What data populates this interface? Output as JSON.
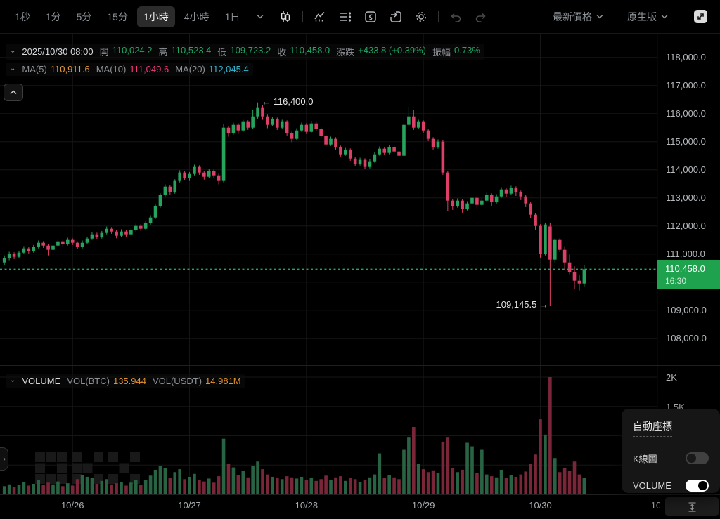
{
  "toolbar": {
    "timeframes": [
      "1秒",
      "1分",
      "5分",
      "15分",
      "1小時",
      "4小時",
      "1日"
    ],
    "selected_timeframe": "1小時",
    "price_mode_label": "最新價格",
    "version_label": "原生版"
  },
  "info_bar": {
    "datetime": "2025/10/30 08:00",
    "open_label": "開",
    "open": "110,024.2",
    "high_label": "高",
    "high": "110,523.4",
    "low_label": "低",
    "low": "109,723.2",
    "close_label": "收",
    "close": "110,458.0",
    "change_label": "漲跌",
    "change": "+433.8 (+0.39%)",
    "amplitude_label": "振幅",
    "amplitude": "0.73%"
  },
  "ma_bar": {
    "ma5_label": "MA(5)",
    "ma5": "110,911.6",
    "ma10_label": "MA(10)",
    "ma10": "111,049.6",
    "ma20_label": "MA(20)",
    "ma20": "112,045.4"
  },
  "annotations": {
    "high": "← 116,400.0",
    "low": "109,145.5 →"
  },
  "price_badge": {
    "price": "110,458.0",
    "time": "16:30"
  },
  "price_axis": {
    "labels": [
      {
        "text": "118,000.0",
        "price": 118000
      },
      {
        "text": "117,000.0",
        "price": 117000
      },
      {
        "text": "116,000.0",
        "price": 116000
      },
      {
        "text": "115,000.0",
        "price": 115000
      },
      {
        "text": "114,000.0",
        "price": 114000
      },
      {
        "text": "113,000.0",
        "price": 113000
      },
      {
        "text": "112,000.0",
        "price": 112000
      },
      {
        "text": "111,000.0",
        "price": 111000
      },
      {
        "text": "109,000.0",
        "price": 109000
      },
      {
        "text": "108,000.0",
        "price": 108000
      }
    ]
  },
  "volume_axis": [
    {
      "text": "2K",
      "value": 2000
    },
    {
      "text": "1.5K",
      "value": 1500
    }
  ],
  "volume_bar": {
    "title": "VOLUME",
    "btc_label": "VOL(BTC)",
    "btc": "135.944",
    "usdt_label": "VOL(USDT)",
    "usdt": "14.981M"
  },
  "settings_popup": {
    "title": "自動座標",
    "items": [
      {
        "label": "K線圖",
        "enabled": false
      },
      {
        "label": "VOLUME",
        "enabled": true
      }
    ]
  },
  "colors": {
    "up": "#27a35e",
    "down": "#dc4067",
    "vol_up": "#286443",
    "vol_down": "#7a2639",
    "badge_green": "#1ea24e",
    "dotted_line": "#23a85c",
    "ma5": "#e89c3b",
    "ma10": "#f23a7c",
    "ma20": "#33b6d0",
    "value_orange": "#df9030",
    "grid": "#161616",
    "separator": "#1f1f1f"
  },
  "chart_data": {
    "type": "candlestick+volume",
    "timeframe": "1小時",
    "columns": [
      "open",
      "high",
      "low",
      "close",
      "volume"
    ],
    "price_axis_range": [
      108000,
      118500
    ],
    "volume_axis_ticks": [
      2000,
      1500
    ],
    "current_price": 110458.0,
    "current_time": "16:30",
    "high_annotation": {
      "value": 116400.0,
      "candle_index": 52
    },
    "low_annotation": {
      "value": 109145.5,
      "candle_index": 112
    },
    "day_ticks": [
      {
        "index": 14,
        "label": "10/26"
      },
      {
        "index": 38,
        "label": "10/27"
      },
      {
        "index": 62,
        "label": "10/28"
      },
      {
        "index": 86,
        "label": "10/29"
      },
      {
        "index": 110,
        "label": "10/30"
      },
      {
        "index": 134,
        "label": "10/"
      }
    ],
    "candles": [
      [
        110700,
        110950,
        110600,
        110850,
        140
      ],
      [
        110850,
        111080,
        110780,
        111000,
        170
      ],
      [
        111000,
        111060,
        110820,
        110900,
        120
      ],
      [
        110900,
        111120,
        110850,
        111050,
        160
      ],
      [
        111050,
        111280,
        111000,
        111200,
        210
      ],
      [
        111200,
        111260,
        111000,
        111100,
        150
      ],
      [
        111100,
        111320,
        111050,
        111250,
        180
      ],
      [
        111250,
        111480,
        111200,
        111400,
        240
      ],
      [
        111400,
        111460,
        111220,
        111300,
        160
      ],
      [
        111300,
        111360,
        110950,
        111150,
        200
      ],
      [
        111150,
        111380,
        111100,
        111300,
        170
      ],
      [
        111300,
        111520,
        111250,
        111450,
        220
      ],
      [
        111450,
        111500,
        111280,
        111350,
        140
      ],
      [
        111350,
        111580,
        111300,
        111500,
        190
      ],
      [
        111500,
        111560,
        111320,
        111400,
        150
      ],
      [
        111400,
        111450,
        111180,
        111250,
        260
      ],
      [
        111250,
        111480,
        111200,
        111400,
        330
      ],
      [
        111400,
        111620,
        111350,
        111550,
        300
      ],
      [
        111550,
        111780,
        111500,
        111700,
        280
      ],
      [
        111700,
        111760,
        111520,
        111600,
        180
      ],
      [
        111600,
        111820,
        111550,
        111750,
        230
      ],
      [
        111750,
        111980,
        111700,
        111900,
        260
      ],
      [
        111900,
        111960,
        111720,
        111800,
        170
      ],
      [
        111800,
        111860,
        111560,
        111650,
        190
      ],
      [
        111650,
        111880,
        111600,
        111800,
        210
      ],
      [
        111800,
        111860,
        111620,
        111700,
        150
      ],
      [
        111700,
        111920,
        111650,
        111850,
        200
      ],
      [
        111850,
        112080,
        111800,
        112000,
        250
      ],
      [
        112000,
        112060,
        111820,
        111900,
        160
      ],
      [
        111900,
        112160,
        111850,
        112100,
        240
      ],
      [
        112100,
        112380,
        112050,
        112300,
        320
      ],
      [
        112300,
        112760,
        112250,
        112700,
        420
      ],
      [
        112700,
        113160,
        112650,
        113100,
        480
      ],
      [
        113100,
        113480,
        113050,
        113400,
        450
      ],
      [
        113400,
        113460,
        113120,
        113200,
        280
      ],
      [
        113200,
        113660,
        113150,
        113600,
        380
      ],
      [
        113600,
        113980,
        113550,
        113900,
        430
      ],
      [
        113900,
        113960,
        113620,
        113700,
        260
      ],
      [
        113700,
        113920,
        113600,
        113850,
        300
      ],
      [
        113850,
        114180,
        113800,
        114100,
        350
      ],
      [
        114100,
        114160,
        113820,
        113900,
        240
      ],
      [
        113900,
        113960,
        113650,
        113750,
        220
      ],
      [
        113750,
        114020,
        113700,
        113950,
        270
      ],
      [
        113950,
        114010,
        113700,
        113800,
        200
      ],
      [
        113800,
        113860,
        113480,
        113600,
        310
      ],
      [
        113600,
        115640,
        113550,
        115500,
        950
      ],
      [
        115500,
        115560,
        115180,
        115300,
        520
      ],
      [
        115300,
        115680,
        115250,
        115600,
        460
      ],
      [
        115600,
        115660,
        115280,
        115400,
        330
      ],
      [
        115400,
        115780,
        115350,
        115700,
        400
      ],
      [
        115700,
        115760,
        115420,
        115500,
        290
      ],
      [
        115500,
        116120,
        115450,
        115900,
        480
      ],
      [
        115900,
        116400,
        115820,
        116200,
        560
      ],
      [
        116200,
        116300,
        115780,
        115900,
        430
      ],
      [
        115900,
        115960,
        115480,
        115600,
        340
      ],
      [
        115600,
        115880,
        115550,
        115800,
        300
      ],
      [
        115800,
        115860,
        115420,
        115500,
        280
      ],
      [
        115500,
        115780,
        115450,
        115700,
        260
      ],
      [
        115700,
        115760,
        115220,
        115300,
        310
      ],
      [
        115300,
        115360,
        114980,
        115100,
        290
      ],
      [
        115100,
        115480,
        115050,
        115400,
        270
      ],
      [
        115400,
        115680,
        115350,
        115600,
        300
      ],
      [
        115600,
        115660,
        115270,
        115350,
        250
      ],
      [
        115350,
        115720,
        115300,
        115650,
        280
      ],
      [
        115650,
        115710,
        115370,
        115450,
        230
      ],
      [
        115450,
        115510,
        115120,
        115200,
        260
      ],
      [
        115200,
        115260,
        114820,
        114900,
        320
      ],
      [
        114900,
        115180,
        114850,
        115100,
        240
      ],
      [
        115100,
        115160,
        114720,
        114800,
        290
      ],
      [
        114800,
        114860,
        114470,
        114550,
        310
      ],
      [
        114550,
        114780,
        114500,
        114700,
        230
      ],
      [
        114700,
        114760,
        114320,
        114400,
        280
      ],
      [
        114400,
        114460,
        114120,
        114200,
        260
      ],
      [
        114200,
        114430,
        114150,
        114350,
        210
      ],
      [
        114350,
        114410,
        114020,
        114100,
        250
      ],
      [
        114100,
        114380,
        114050,
        114300,
        290
      ],
      [
        114300,
        114630,
        114250,
        114550,
        340
      ],
      [
        114550,
        114830,
        114500,
        114750,
        700
      ],
      [
        114750,
        114810,
        114520,
        114600,
        280
      ],
      [
        114600,
        114880,
        114550,
        114800,
        330
      ],
      [
        114800,
        114860,
        114570,
        114650,
        290
      ],
      [
        114650,
        114710,
        114420,
        114500,
        260
      ],
      [
        114500,
        115920,
        114450,
        115600,
        760
      ],
      [
        115600,
        116220,
        115550,
        115900,
        980
      ],
      [
        115900,
        116120,
        115420,
        115500,
        1150
      ],
      [
        115500,
        115780,
        115450,
        115700,
        520
      ],
      [
        115700,
        115760,
        115320,
        115400,
        430
      ],
      [
        115400,
        115460,
        115020,
        115100,
        380
      ],
      [
        115100,
        115160,
        114720,
        114800,
        410
      ],
      [
        114800,
        115080,
        114750,
        115000,
        360
      ],
      [
        115000,
        115060,
        113820,
        113900,
        900
      ],
      [
        113900,
        113960,
        112520,
        112900,
        980
      ],
      [
        112900,
        112960,
        112570,
        112700,
        450
      ],
      [
        112700,
        112980,
        112650,
        112900,
        380
      ],
      [
        112900,
        112960,
        112470,
        112600,
        420
      ],
      [
        112600,
        112880,
        112550,
        112800,
        880
      ],
      [
        112800,
        113080,
        112750,
        113000,
        820
      ],
      [
        113000,
        113060,
        112620,
        112750,
        360
      ],
      [
        112750,
        112980,
        112700,
        112900,
        760
      ],
      [
        112900,
        113180,
        112850,
        113100,
        340
      ],
      [
        113100,
        113160,
        112720,
        112850,
        310
      ],
      [
        112850,
        113130,
        112800,
        113050,
        290
      ],
      [
        113050,
        113380,
        113000,
        113300,
        420
      ],
      [
        113300,
        113360,
        113020,
        113150,
        280
      ],
      [
        113150,
        113430,
        113100,
        113350,
        330
      ],
      [
        113350,
        113410,
        113070,
        113200,
        300
      ],
      [
        113200,
        113260,
        112920,
        113050,
        340
      ],
      [
        113050,
        113110,
        112670,
        112800,
        390
      ],
      [
        112800,
        112860,
        112270,
        112400,
        520
      ],
      [
        112400,
        112460,
        111870,
        112000,
        680
      ],
      [
        112000,
        112060,
        110870,
        111000,
        1280
      ],
      [
        111000,
        112120,
        110950,
        112050,
        1020
      ],
      [
        111980,
        112120,
        109145.5,
        110800,
        2000
      ],
      [
        110800,
        111560,
        110700,
        111500,
        620
      ],
      [
        111500,
        111560,
        111070,
        111150,
        380
      ],
      [
        111150,
        111280,
        110420,
        110700,
        450
      ],
      [
        110700,
        110980,
        110280,
        110350,
        400
      ],
      [
        110350,
        110560,
        109750,
        110050,
        560
      ],
      [
        110050,
        110240,
        109700,
        109950,
        340
      ],
      [
        109950,
        110600,
        109850,
        110458,
        280
      ]
    ]
  }
}
